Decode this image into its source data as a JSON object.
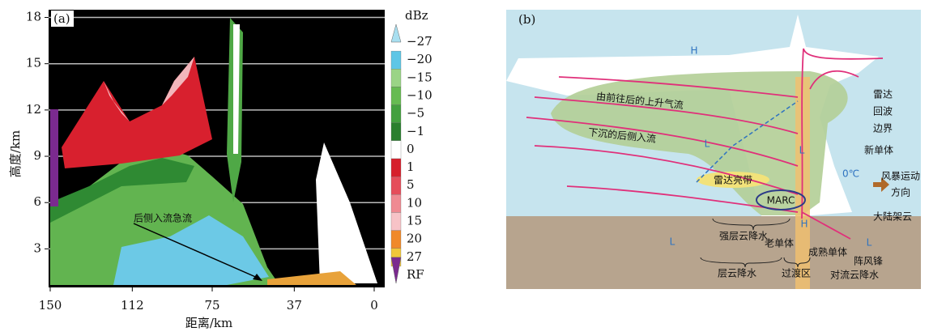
{
  "panel_a": {
    "tag": "(a)",
    "ylabel": "高度/km",
    "xlabel": "距离/km",
    "annotation": "后侧入流急流",
    "xlim": [
      150,
      0
    ],
    "ylim": [
      0.5,
      18.5
    ],
    "xticks": [
      150,
      112,
      75,
      37,
      0
    ],
    "yticks": [
      3,
      6,
      9,
      12,
      15,
      18
    ],
    "grid": true,
    "colorbar": {
      "title": "dBz",
      "labels": [
        "−27",
        "−20",
        "−15",
        "−10",
        "−5",
        "−1",
        "0",
        "1",
        "5",
        "10",
        "15",
        "20",
        "27",
        "RF"
      ],
      "colors": [
        "#a8dff0",
        "#5ec6e6",
        "#9ad486",
        "#66bb52",
        "#43a03f",
        "#2a7f2e",
        "#ffffff",
        "#d61f2b",
        "#e54d5a",
        "#ef8a92",
        "#f7c3c7",
        "#f0892a",
        "#f0c63a",
        "#7b2a8f"
      ]
    }
  },
  "panel_b": {
    "tag": "(b)",
    "labels": [
      "H",
      "由前往后的上升气流",
      "下沉的后侧入流",
      "雷达亮带",
      "MARC",
      "L",
      "L",
      "L",
      "L",
      "H",
      "0℃",
      "雷达",
      "回波",
      "边界",
      "新单体",
      "风暴运动",
      "方向",
      "大陆架云",
      "阵风锋",
      "强层云降水",
      "老单体",
      "成熟单体",
      "层云降水",
      "过渡区",
      "对流云降水"
    ]
  }
}
